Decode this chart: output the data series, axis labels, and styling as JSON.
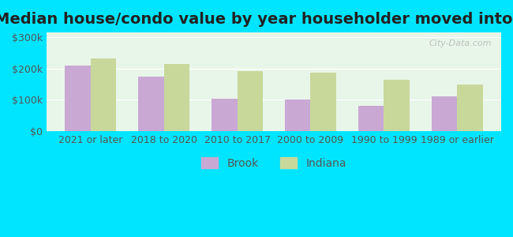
{
  "title": "Median house/condo value by year householder moved into unit",
  "categories": [
    "2021 or later",
    "2018 to 2020",
    "2010 to 2017",
    "2000 to 2009",
    "1990 to 1999",
    "1989 or earlier"
  ],
  "brook_values": [
    210000,
    175000,
    103000,
    102000,
    80000,
    110000
  ],
  "indiana_values": [
    232000,
    215000,
    193000,
    187000,
    163000,
    148000
  ],
  "brook_color": "#c9a8d4",
  "indiana_color": "#c8d89a",
  "background_outer": "#00e5ff",
  "background_inner_top": "#e8f5e9",
  "background_inner_bottom": "#f5f5e8",
  "yticks": [
    0,
    100000,
    200000,
    300000
  ],
  "ytick_labels": [
    "$0",
    "$100k",
    "$200k",
    "$300k"
  ],
  "ylim": [
    0,
    315000
  ],
  "bar_width": 0.35,
  "watermark": "City-Data.com",
  "legend_brook": "Brook",
  "legend_indiana": "Indiana",
  "title_fontsize": 14,
  "tick_fontsize": 9,
  "legend_fontsize": 10
}
